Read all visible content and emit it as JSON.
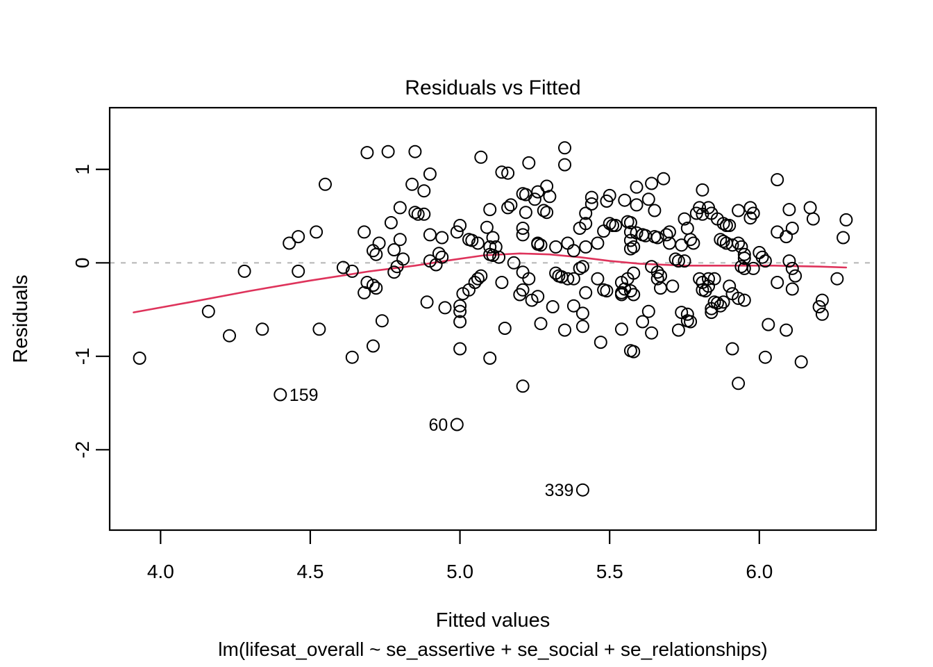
{
  "figure": {
    "title": "Residuals vs Fitted",
    "xlabel": "Fitted values",
    "ylabel": "Residuals",
    "call_label": "lm(lifesat_overall ~ se_assertive + se_social + se_relationships)"
  },
  "chart_data": {
    "type": "scatter",
    "title": "Residuals vs Fitted",
    "xlabel": "Fitted values",
    "ylabel": "Residuals",
    "subtitle": "lm(lifesat_overall ~ se_assertive + se_social + se_relationships)",
    "xlim": [
      3.83,
      6.39
    ],
    "ylim": [
      -2.86,
      1.66
    ],
    "x_tick_labels": [
      "4.0",
      "4.5",
      "5.0",
      "5.5",
      "6.0"
    ],
    "x_tick_values": [
      4.0,
      4.5,
      5.0,
      5.5,
      6.0
    ],
    "y_tick_labels": [
      "1",
      "0",
      "-1",
      "-2"
    ],
    "y_tick_values": [
      1,
      0,
      -1,
      -2
    ],
    "grid": false,
    "background": "#ffffff",
    "point_style": {
      "marker": "open-circle",
      "stroke": "#000000"
    },
    "zero_line": {
      "value": 0,
      "style": "dashed",
      "color": "#b9b9b9"
    },
    "smoother": {
      "name": "loess-fit",
      "color": "#de335b",
      "points": [
        [
          3.91,
          -0.53
        ],
        [
          4.1,
          -0.42
        ],
        [
          4.3,
          -0.3
        ],
        [
          4.5,
          -0.19
        ],
        [
          4.7,
          -0.09
        ],
        [
          4.85,
          -0.03
        ],
        [
          4.97,
          0.03
        ],
        [
          5.08,
          0.08
        ],
        [
          5.2,
          0.1
        ],
        [
          5.3,
          0.09
        ],
        [
          5.4,
          0.06
        ],
        [
          5.5,
          0.02
        ],
        [
          5.6,
          -0.01
        ],
        [
          5.75,
          -0.03
        ],
        [
          5.9,
          -0.03
        ],
        [
          6.05,
          -0.03
        ],
        [
          6.2,
          -0.04
        ],
        [
          6.29,
          -0.05
        ]
      ]
    },
    "labeled_points": [
      {
        "label": "159",
        "x": 4.4,
        "y": -1.41,
        "label_side": "right"
      },
      {
        "label": "60",
        "x": 4.99,
        "y": -1.73,
        "label_side": "left"
      },
      {
        "label": "339",
        "x": 5.41,
        "y": -2.43,
        "label_side": "left"
      }
    ],
    "points": [
      [
        4.55,
        0.84
      ],
      [
        4.52,
        0.33
      ],
      [
        4.46,
        0.28
      ],
      [
        4.43,
        0.21
      ],
      [
        4.28,
        -0.09
      ],
      [
        4.46,
        -0.09
      ],
      [
        4.61,
        -0.05
      ],
      [
        4.64,
        -0.09
      ],
      [
        4.16,
        -0.52
      ],
      [
        3.93,
        -1.02
      ],
      [
        4.23,
        -0.78
      ],
      [
        4.34,
        -0.71
      ],
      [
        4.53,
        -0.71
      ],
      [
        4.64,
        -1.01
      ],
      [
        4.68,
        0.33
      ],
      [
        4.68,
        -0.32
      ],
      [
        4.69,
        1.18
      ],
      [
        4.76,
        1.19
      ],
      [
        4.85,
        1.19
      ],
      [
        5.07,
        1.13
      ],
      [
        5.23,
        1.07
      ],
      [
        5.35,
        1.23
      ],
      [
        5.35,
        1.05
      ],
      [
        5.14,
        0.97
      ],
      [
        5.16,
        0.96
      ],
      [
        4.9,
        0.95
      ],
      [
        4.84,
        0.84
      ],
      [
        4.88,
        0.77
      ],
      [
        5.21,
        0.74
      ],
      [
        5.22,
        0.73
      ],
      [
        5.26,
        0.76
      ],
      [
        5.29,
        0.82
      ],
      [
        5.3,
        0.71
      ],
      [
        5.25,
        0.68
      ],
      [
        5.17,
        0.62
      ],
      [
        5.16,
        0.59
      ],
      [
        4.8,
        0.59
      ],
      [
        5.1,
        0.57
      ],
      [
        5.22,
        0.54
      ],
      [
        5.28,
        0.56
      ],
      [
        5.29,
        0.54
      ],
      [
        4.85,
        0.54
      ],
      [
        4.86,
        0.52
      ],
      [
        4.88,
        0.52
      ],
      [
        4.77,
        0.43
      ],
      [
        5.44,
        0.7
      ],
      [
        5.5,
        0.72
      ],
      [
        5.49,
        0.66
      ],
      [
        5.42,
        0.53
      ],
      [
        5.44,
        0.63
      ],
      [
        5.4,
        0.37
      ],
      [
        5.42,
        0.42
      ],
      [
        5.5,
        0.42
      ],
      [
        5.51,
        0.4
      ],
      [
        5.52,
        0.4
      ],
      [
        5.48,
        0.34
      ],
      [
        5.0,
        0.4
      ],
      [
        4.99,
        0.33
      ],
      [
        5.09,
        0.38
      ],
      [
        5.21,
        0.37
      ],
      [
        5.21,
        0.3
      ],
      [
        4.9,
        0.3
      ],
      [
        4.94,
        0.27
      ],
      [
        5.03,
        0.25
      ],
      [
        5.04,
        0.24
      ],
      [
        5.06,
        0.21
      ],
      [
        5.11,
        0.27
      ],
      [
        5.26,
        0.21
      ],
      [
        5.26,
        0.2
      ],
      [
        5.27,
        0.19
      ],
      [
        5.36,
        0.21
      ],
      [
        5.32,
        0.17
      ],
      [
        5.38,
        0.13
      ],
      [
        5.42,
        0.17
      ],
      [
        5.46,
        0.21
      ],
      [
        4.73,
        0.21
      ],
      [
        4.71,
        0.13
      ],
      [
        4.72,
        0.09
      ],
      [
        4.8,
        0.25
      ],
      [
        4.78,
        0.14
      ],
      [
        5.1,
        0.17
      ],
      [
        5.12,
        0.17
      ],
      [
        5.1,
        0.09
      ],
      [
        5.11,
        0.08
      ],
      [
        5.13,
        0.06
      ],
      [
        4.93,
        0.1
      ],
      [
        4.94,
        0.06
      ],
      [
        4.92,
        -0.02
      ],
      [
        4.9,
        0.02
      ],
      [
        4.81,
        0.04
      ],
      [
        4.79,
        -0.04
      ],
      [
        4.78,
        -0.1
      ],
      [
        5.18,
        0.0
      ],
      [
        5.21,
        -0.1
      ],
      [
        5.23,
        -0.17
      ],
      [
        5.26,
        -0.36
      ],
      [
        5.32,
        -0.11
      ],
      [
        5.33,
        -0.14
      ],
      [
        5.34,
        -0.15
      ],
      [
        5.36,
        -0.17
      ],
      [
        5.38,
        -0.17
      ],
      [
        5.4,
        -0.06
      ],
      [
        5.41,
        -0.04
      ],
      [
        5.46,
        -0.17
      ],
      [
        5.48,
        -0.29
      ],
      [
        5.49,
        -0.3
      ],
      [
        5.42,
        -0.32
      ],
      [
        5.06,
        -0.17
      ],
      [
        5.07,
        -0.14
      ],
      [
        5.05,
        -0.21
      ],
      [
        5.03,
        -0.29
      ],
      [
        5.01,
        -0.33
      ],
      [
        5.14,
        -0.21
      ],
      [
        4.71,
        -0.24
      ],
      [
        4.72,
        -0.27
      ],
      [
        4.69,
        -0.21
      ],
      [
        4.74,
        -0.62
      ],
      [
        4.89,
        -0.42
      ],
      [
        4.95,
        -0.48
      ],
      [
        5.0,
        -0.46
      ],
      [
        5.0,
        -0.52
      ],
      [
        5.21,
        -0.29
      ],
      [
        5.2,
        -0.34
      ],
      [
        5.24,
        -0.4
      ],
      [
        5.31,
        -0.47
      ],
      [
        5.38,
        -0.46
      ],
      [
        5.41,
        -0.54
      ],
      [
        5.59,
        0.81
      ],
      [
        5.64,
        0.85
      ],
      [
        5.68,
        0.9
      ],
      [
        5.55,
        0.67
      ],
      [
        5.59,
        0.62
      ],
      [
        5.63,
        0.68
      ],
      [
        5.65,
        0.56
      ],
      [
        5.81,
        0.78
      ],
      [
        5.8,
        0.59
      ],
      [
        5.79,
        0.53
      ],
      [
        5.81,
        0.52
      ],
      [
        5.83,
        0.59
      ],
      [
        5.84,
        0.53
      ],
      [
        5.86,
        0.47
      ],
      [
        5.88,
        0.42
      ],
      [
        5.89,
        0.4
      ],
      [
        5.9,
        0.4
      ],
      [
        5.93,
        0.56
      ],
      [
        5.97,
        0.59
      ],
      [
        5.98,
        0.53
      ],
      [
        5.97,
        0.48
      ],
      [
        6.06,
        0.89
      ],
      [
        6.1,
        0.57
      ],
      [
        6.17,
        0.59
      ],
      [
        6.18,
        0.47
      ],
      [
        6.29,
        0.46
      ],
      [
        6.28,
        0.27
      ],
      [
        6.06,
        0.33
      ],
      [
        6.09,
        0.28
      ],
      [
        6.11,
        0.37
      ],
      [
        5.56,
        0.44
      ],
      [
        5.57,
        0.43
      ],
      [
        5.57,
        0.33
      ],
      [
        5.59,
        0.32
      ],
      [
        5.61,
        0.3
      ],
      [
        5.62,
        0.29
      ],
      [
        5.65,
        0.28
      ],
      [
        5.66,
        0.27
      ],
      [
        5.57,
        0.24
      ],
      [
        5.58,
        0.17
      ],
      [
        5.57,
        0.15
      ],
      [
        5.69,
        0.3
      ],
      [
        5.7,
        0.33
      ],
      [
        5.7,
        0.21
      ],
      [
        5.75,
        0.47
      ],
      [
        5.74,
        0.19
      ],
      [
        5.76,
        0.37
      ],
      [
        5.77,
        0.25
      ],
      [
        5.78,
        0.21
      ],
      [
        5.87,
        0.25
      ],
      [
        5.88,
        0.23
      ],
      [
        5.89,
        0.21
      ],
      [
        5.91,
        0.19
      ],
      [
        5.93,
        0.21
      ],
      [
        5.94,
        0.17
      ],
      [
        5.95,
        0.09
      ],
      [
        5.95,
        0.05
      ],
      [
        6.0,
        0.11
      ],
      [
        6.01,
        0.06
      ],
      [
        6.02,
        0.02
      ],
      [
        5.72,
        0.04
      ],
      [
        5.73,
        0.02
      ],
      [
        5.75,
        0.02
      ],
      [
        5.64,
        -0.04
      ],
      [
        5.66,
        -0.1
      ],
      [
        5.67,
        -0.14
      ],
      [
        5.66,
        -0.17
      ],
      [
        5.58,
        -0.11
      ],
      [
        5.56,
        -0.17
      ],
      [
        5.54,
        -0.21
      ],
      [
        5.55,
        -0.28
      ],
      [
        5.57,
        -0.3
      ],
      [
        5.54,
        -0.32
      ],
      [
        5.54,
        -0.34
      ],
      [
        5.58,
        -0.34
      ],
      [
        5.67,
        -0.27
      ],
      [
        5.71,
        -0.25
      ],
      [
        5.94,
        -0.04
      ],
      [
        5.95,
        -0.06
      ],
      [
        5.98,
        -0.06
      ],
      [
        6.1,
        0.02
      ],
      [
        6.11,
        -0.06
      ],
      [
        6.12,
        -0.14
      ],
      [
        6.06,
        -0.21
      ],
      [
        6.11,
        -0.28
      ],
      [
        6.26,
        -0.17
      ],
      [
        5.8,
        -0.17
      ],
      [
        5.81,
        -0.21
      ],
      [
        5.83,
        -0.17
      ],
      [
        5.83,
        -0.25
      ],
      [
        5.85,
        -0.17
      ],
      [
        5.81,
        -0.29
      ],
      [
        5.82,
        -0.3
      ],
      [
        5.84,
        -0.49
      ],
      [
        5.85,
        -0.42
      ],
      [
        5.86,
        -0.43
      ],
      [
        5.88,
        -0.42
      ],
      [
        5.87,
        -0.46
      ],
      [
        5.9,
        -0.25
      ],
      [
        5.91,
        -0.33
      ],
      [
        5.93,
        -0.38
      ],
      [
        5.95,
        -0.4
      ],
      [
        6.21,
        -0.4
      ],
      [
        6.2,
        -0.47
      ],
      [
        6.21,
        -0.55
      ],
      [
        5.63,
        -0.52
      ],
      [
        5.74,
        -0.53
      ],
      [
        5.76,
        -0.55
      ],
      [
        5.84,
        -0.53
      ],
      [
        4.71,
        -0.89
      ],
      [
        5.0,
        -0.63
      ],
      [
        5.0,
        -0.92
      ],
      [
        5.1,
        -1.02
      ],
      [
        5.15,
        -0.7
      ],
      [
        5.27,
        -0.65
      ],
      [
        5.35,
        -0.72
      ],
      [
        5.41,
        -0.68
      ],
      [
        5.47,
        -0.85
      ],
      [
        5.21,
        -1.32
      ],
      [
        5.54,
        -0.71
      ],
      [
        5.61,
        -0.63
      ],
      [
        5.64,
        -0.75
      ],
      [
        5.73,
        -0.72
      ],
      [
        5.76,
        -0.62
      ],
      [
        5.77,
        -0.63
      ],
      [
        5.57,
        -0.94
      ],
      [
        5.58,
        -0.95
      ],
      [
        5.91,
        -0.92
      ],
      [
        6.03,
        -0.66
      ],
      [
        6.02,
        -1.01
      ],
      [
        6.09,
        -0.72
      ],
      [
        6.14,
        -1.06
      ],
      [
        5.93,
        -1.29
      ]
    ]
  }
}
